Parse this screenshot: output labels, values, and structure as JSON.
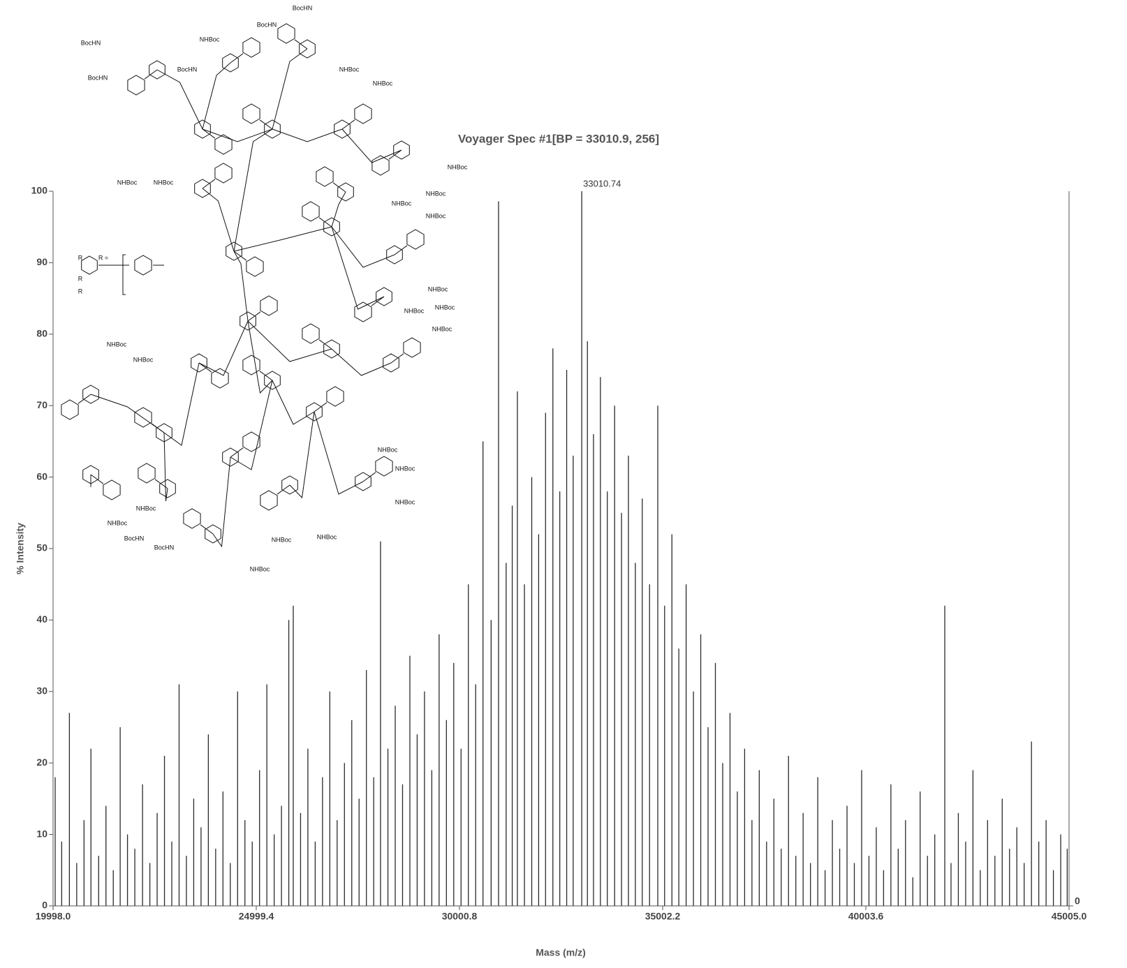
{
  "chart_data": {
    "type": "stick",
    "title": "Voyager Spec #1[BP = 33010.9, 256]",
    "x_label": "Mass (m/z)",
    "y_label": "% Intensity",
    "color": "#2a2a2a",
    "xlim": [
      19998,
      45005
    ],
    "ylim": [
      0,
      100
    ],
    "y2lim": [
      0,
      256
    ],
    "xticks": [
      {
        "value": 19998,
        "label": "19998.0"
      },
      24999.4,
      30000.8,
      35002.2,
      40003.6,
      {
        "value": 45005,
        "label": "45005.0"
      }
    ],
    "yticks": [
      0,
      10,
      20,
      30,
      40,
      50,
      60,
      70,
      80,
      90,
      100
    ],
    "y2ticks": [
      0
    ],
    "annotations": [
      {
        "text": "33010.74",
        "x": 33010.74,
        "y": 100
      }
    ],
    "x": [
      20050,
      20210,
      20400,
      20580,
      20760,
      20930,
      21120,
      21300,
      21480,
      21650,
      21830,
      22010,
      22200,
      22380,
      22560,
      22740,
      22920,
      23100,
      23280,
      23460,
      23640,
      23820,
      24000,
      24180,
      24360,
      24540,
      24720,
      24900,
      25080,
      25260,
      25440,
      25620,
      25800,
      25910,
      26090,
      26270,
      26450,
      26630,
      26810,
      26990,
      27170,
      27350,
      27530,
      27710,
      27890,
      28058,
      28240,
      28420,
      28600,
      28780,
      28960,
      29140,
      29320,
      29500,
      29680,
      29860,
      30040,
      30220,
      30400,
      30580,
      30780,
      30963,
      31150,
      31300,
      31427,
      31600,
      31780,
      31950,
      32120,
      32300,
      32470,
      32640,
      32800,
      33010.74,
      33150,
      33300,
      33470,
      33640,
      33820,
      33990,
      34160,
      34330,
      34500,
      34680,
      34882,
      35050,
      35230,
      35400,
      35580,
      35760,
      35940,
      36120,
      36300,
      36480,
      36660,
      36840,
      37020,
      37200,
      37380,
      37560,
      37740,
      37920,
      38100,
      38280,
      38460,
      38640,
      38820,
      39000,
      39180,
      39360,
      39540,
      39720,
      39900,
      40080,
      40260,
      40440,
      40620,
      40800,
      40980,
      41160,
      41340,
      41520,
      41700,
      41946,
      42100,
      42280,
      42460,
      42640,
      42820,
      43000,
      43180,
      43360,
      43540,
      43720,
      43900,
      44080,
      44260,
      44440,
      44620,
      44800,
      44960
    ],
    "values": [
      18,
      9,
      27,
      6,
      12,
      22,
      7,
      14,
      5,
      25,
      10,
      8,
      17,
      6,
      13,
      21,
      9,
      31,
      7,
      15,
      11,
      24,
      8,
      16,
      6,
      30,
      12,
      9,
      19,
      31,
      10,
      14,
      40,
      42,
      13,
      22,
      9,
      18,
      30,
      12,
      20,
      26,
      15,
      33,
      18,
      51,
      22,
      28,
      17,
      35,
      24,
      30,
      19,
      38,
      26,
      34,
      22,
      45,
      31,
      65,
      40,
      98.6,
      48,
      56,
      72,
      45,
      60,
      52,
      69,
      78,
      58,
      75,
      63,
      100,
      79,
      66,
      74,
      58,
      70,
      55,
      63,
      48,
      57,
      45,
      70,
      42,
      52,
      36,
      45,
      30,
      38,
      25,
      34,
      20,
      27,
      16,
      22,
      12,
      19,
      9,
      15,
      8,
      21,
      7,
      13,
      6,
      18,
      5,
      12,
      8,
      14,
      6,
      19,
      7,
      11,
      5,
      17,
      8,
      12,
      4,
      16,
      7,
      10,
      42,
      6,
      13,
      9,
      19,
      5,
      12,
      7,
      15,
      8,
      11,
      6,
      23,
      9,
      12,
      5,
      10,
      8
    ]
  },
  "structure": {
    "labels": [
      "BocHN",
      "BocHN",
      "BocHN",
      "BocHN",
      "BocHN",
      "NHBoc",
      "NHBoc",
      "NHBoc",
      "NHBoc",
      "NHBoc",
      "NHBoc",
      "NHBoc",
      "NHBoc",
      "NHBoc",
      "NHBoc",
      "NHBoc",
      "NHBoc",
      "NHBoc",
      "NHBoc",
      "NHBoc",
      "NHBoc",
      "NHBoc",
      "NHBoc",
      "NHBoc",
      "NHBoc",
      "BocHN",
      "BocHN",
      "NHBoc",
      "NHBoc",
      "NHBoc",
      "R",
      "R",
      "R",
      "R ="
    ]
  }
}
